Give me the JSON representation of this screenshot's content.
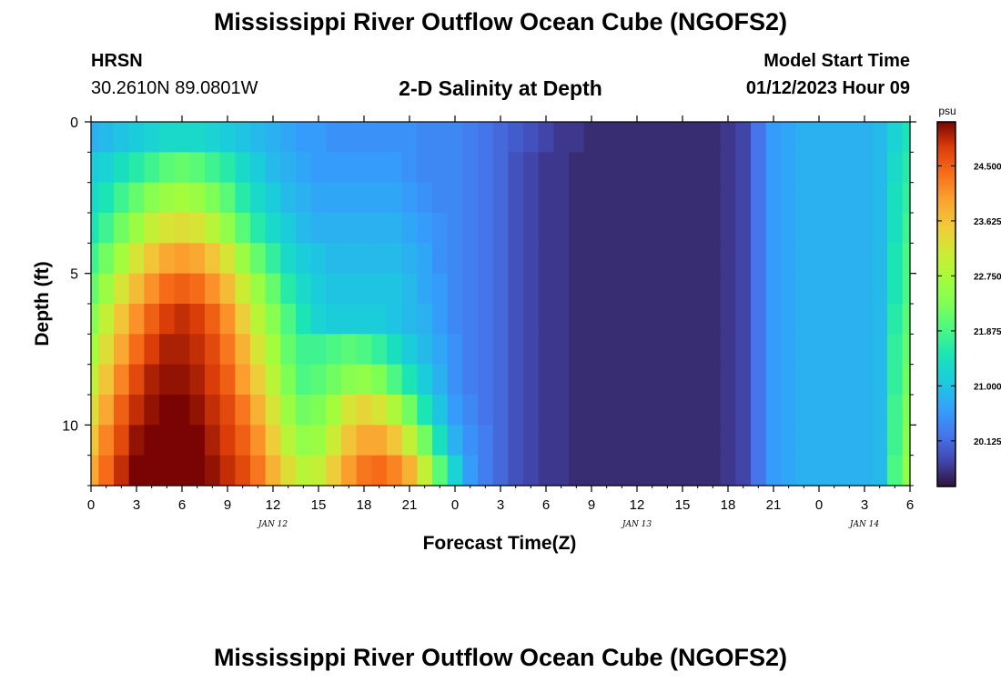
{
  "header": {
    "title": "Mississippi River Outflow Ocean Cube (NGOFS2)",
    "station_code": "HRSN",
    "station_coords": "30.2610N  89.0801W",
    "subtitle": "2-D Salinity at Depth",
    "model_start_label": "Model Start Time",
    "model_start_value": "01/12/2023 Hour 09"
  },
  "footer": {
    "title": "Mississippi River Outflow Ocean Cube (NGOFS2)"
  },
  "chart_data": {
    "type": "heatmap",
    "title": "2-D Salinity at Depth",
    "xlabel": "Forecast Time(Z)",
    "ylabel": "Depth (ft)",
    "x_unit": "hours from Jan 12 00Z",
    "xlim": [
      0,
      54
    ],
    "ylim": [
      0,
      12
    ],
    "y_inverted": true,
    "x_ticks": [
      0,
      3,
      6,
      9,
      12,
      15,
      18,
      21,
      24,
      27,
      30,
      33,
      36,
      39,
      42,
      45,
      48,
      51,
      54
    ],
    "x_tick_labels": [
      "0",
      "3",
      "6",
      "9",
      "12",
      "15",
      "18",
      "21",
      "0",
      "3",
      "6",
      "9",
      "12",
      "15",
      "18",
      "21",
      "0",
      "3",
      "6"
    ],
    "y_ticks": [
      0,
      5,
      10
    ],
    "y_tick_labels": [
      "0",
      "5",
      "10"
    ],
    "date_labels": [
      {
        "text": "JAN 12",
        "x": 12
      },
      {
        "text": "JAN 13",
        "x": 36
      },
      {
        "text": "JAN 14",
        "x": 51
      }
    ],
    "colorbar": {
      "unit": "psu",
      "min": 19.4,
      "max": 25.2,
      "ticks": [
        20.125,
        21.0,
        21.875,
        22.75,
        23.625,
        24.5
      ],
      "tick_labels": [
        "20.125",
        "21.000",
        "21.875",
        "22.750",
        "23.625",
        "24.500"
      ]
    },
    "grid": false,
    "x_times": [
      0,
      1,
      2,
      3,
      4,
      5,
      6,
      7,
      8,
      9,
      10,
      11,
      12,
      13,
      14,
      15,
      16,
      17,
      18,
      19,
      20,
      21,
      22,
      23,
      24,
      25,
      26,
      27,
      28,
      29,
      30,
      31,
      32,
      33,
      34,
      35,
      36,
      37,
      38,
      39,
      40,
      41,
      42,
      43,
      44,
      45,
      46,
      47,
      48,
      49,
      50,
      51,
      52,
      53,
      54
    ],
    "depth_bands": [
      0.5,
      1.5,
      2.5,
      3.5,
      4.5,
      5.5,
      6.5,
      7.5,
      8.5,
      9.5,
      10.5,
      11.5
    ],
    "salinity_psu": [
      [
        20.8,
        20.9,
        21.0,
        21.1,
        21.2,
        21.3,
        21.3,
        21.3,
        21.2,
        21.1,
        21.0,
        20.9,
        20.8,
        20.7,
        20.6,
        20.6,
        20.5,
        20.5,
        20.5,
        20.5,
        20.5,
        20.5,
        20.4,
        20.4,
        20.4,
        20.3,
        20.2,
        20.1,
        20.0,
        19.9,
        19.8,
        19.7,
        19.7,
        19.6,
        19.6,
        19.6,
        19.6,
        19.6,
        19.6,
        19.6,
        19.6,
        19.6,
        19.7,
        19.8,
        20.2,
        20.6,
        20.7,
        20.8,
        20.8,
        20.8,
        20.8,
        20.8,
        20.9,
        21.2,
        21.5
      ],
      [
        21.1,
        21.2,
        21.4,
        21.6,
        21.8,
        22.0,
        22.1,
        22.0,
        21.8,
        21.6,
        21.3,
        21.1,
        20.9,
        20.8,
        20.7,
        20.6,
        20.6,
        20.6,
        20.6,
        20.6,
        20.6,
        20.5,
        20.4,
        20.4,
        20.4,
        20.3,
        20.2,
        20.1,
        19.9,
        19.8,
        19.7,
        19.7,
        19.6,
        19.6,
        19.6,
        19.6,
        19.6,
        19.6,
        19.6,
        19.6,
        19.6,
        19.6,
        19.7,
        19.8,
        20.2,
        20.6,
        20.7,
        20.8,
        20.8,
        20.8,
        20.8,
        20.8,
        20.9,
        21.3,
        21.6
      ],
      [
        21.3,
        21.5,
        21.8,
        22.1,
        22.4,
        22.6,
        22.7,
        22.6,
        22.3,
        22.0,
        21.6,
        21.3,
        21.1,
        20.9,
        20.8,
        20.7,
        20.7,
        20.7,
        20.7,
        20.7,
        20.7,
        20.6,
        20.5,
        20.4,
        20.4,
        20.3,
        20.2,
        20.1,
        19.9,
        19.8,
        19.7,
        19.7,
        19.6,
        19.6,
        19.6,
        19.6,
        19.6,
        19.6,
        19.6,
        19.6,
        19.6,
        19.6,
        19.7,
        19.8,
        20.2,
        20.6,
        20.7,
        20.8,
        20.8,
        20.8,
        20.8,
        20.8,
        20.9,
        21.4,
        21.7
      ],
      [
        21.5,
        21.8,
        22.2,
        22.6,
        23.0,
        23.2,
        23.3,
        23.2,
        22.9,
        22.5,
        22.0,
        21.6,
        21.3,
        21.1,
        20.9,
        20.8,
        20.8,
        20.8,
        20.8,
        20.8,
        20.8,
        20.7,
        20.6,
        20.5,
        20.4,
        20.3,
        20.2,
        20.1,
        19.9,
        19.8,
        19.7,
        19.7,
        19.6,
        19.6,
        19.6,
        19.6,
        19.6,
        19.6,
        19.6,
        19.6,
        19.6,
        19.6,
        19.7,
        19.8,
        20.2,
        20.6,
        20.7,
        20.8,
        20.8,
        20.8,
        20.8,
        20.8,
        20.9,
        21.4,
        21.8
      ],
      [
        21.8,
        22.2,
        22.7,
        23.2,
        23.6,
        23.9,
        24.0,
        23.9,
        23.6,
        23.2,
        22.6,
        22.1,
        21.7,
        21.3,
        21.1,
        21.0,
        20.9,
        20.9,
        20.9,
        20.9,
        20.9,
        20.8,
        20.7,
        20.5,
        20.4,
        20.3,
        20.2,
        20.1,
        19.9,
        19.8,
        19.7,
        19.7,
        19.6,
        19.6,
        19.6,
        19.6,
        19.6,
        19.6,
        19.6,
        19.6,
        19.6,
        19.6,
        19.7,
        19.8,
        20.2,
        20.6,
        20.7,
        20.8,
        20.8,
        20.8,
        20.8,
        20.8,
        20.9,
        21.5,
        21.9
      ],
      [
        22.1,
        22.6,
        23.2,
        23.7,
        24.1,
        24.4,
        24.5,
        24.4,
        24.1,
        23.7,
        23.1,
        22.6,
        22.1,
        21.6,
        21.3,
        21.1,
        21.0,
        21.0,
        21.0,
        21.0,
        21.0,
        20.9,
        20.7,
        20.6,
        20.4,
        20.3,
        20.2,
        20.1,
        19.9,
        19.8,
        19.7,
        19.7,
        19.6,
        19.6,
        19.6,
        19.6,
        19.6,
        19.6,
        19.6,
        19.6,
        19.6,
        19.6,
        19.7,
        19.8,
        20.2,
        20.6,
        20.7,
        20.8,
        20.8,
        20.8,
        20.8,
        20.8,
        20.9,
        21.5,
        21.9
      ],
      [
        22.4,
        23.0,
        23.6,
        24.1,
        24.5,
        24.8,
        24.9,
        24.8,
        24.5,
        24.1,
        23.5,
        22.9,
        22.4,
        21.9,
        21.5,
        21.2,
        21.1,
        21.1,
        21.1,
        21.1,
        21.0,
        20.9,
        20.8,
        20.6,
        20.4,
        20.3,
        20.2,
        20.1,
        19.9,
        19.8,
        19.7,
        19.7,
        19.6,
        19.6,
        19.6,
        19.6,
        19.6,
        19.6,
        19.6,
        19.6,
        19.6,
        19.6,
        19.7,
        19.8,
        20.2,
        20.6,
        20.7,
        20.8,
        20.8,
        20.8,
        20.8,
        20.8,
        20.9,
        21.6,
        22.0
      ],
      [
        22.7,
        23.3,
        23.9,
        24.4,
        24.8,
        25.0,
        25.0,
        24.9,
        24.7,
        24.3,
        23.8,
        23.2,
        22.7,
        22.1,
        21.8,
        21.8,
        21.9,
        22.0,
        21.9,
        21.7,
        21.4,
        21.1,
        20.9,
        20.7,
        20.5,
        20.3,
        20.2,
        20.1,
        19.9,
        19.8,
        19.7,
        19.7,
        19.6,
        19.6,
        19.6,
        19.6,
        19.6,
        19.6,
        19.6,
        19.6,
        19.6,
        19.6,
        19.7,
        19.8,
        20.2,
        20.6,
        20.7,
        20.8,
        20.8,
        20.8,
        20.8,
        20.8,
        20.9,
        21.7,
        22.1
      ],
      [
        23.0,
        23.6,
        24.2,
        24.7,
        25.0,
        25.1,
        25.1,
        25.0,
        24.8,
        24.5,
        24.0,
        23.5,
        22.9,
        22.3,
        21.9,
        22.0,
        22.2,
        22.4,
        22.5,
        22.3,
        21.9,
        21.5,
        21.1,
        20.8,
        20.5,
        20.3,
        20.2,
        20.1,
        19.9,
        19.8,
        19.7,
        19.7,
        19.6,
        19.6,
        19.6,
        19.6,
        19.6,
        19.6,
        19.6,
        19.6,
        19.6,
        19.6,
        19.7,
        19.8,
        20.2,
        20.6,
        20.7,
        20.8,
        20.8,
        20.8,
        20.8,
        20.8,
        20.9,
        21.7,
        22.2
      ],
      [
        23.3,
        23.9,
        24.5,
        24.9,
        25.1,
        25.2,
        25.2,
        25.1,
        24.9,
        24.7,
        24.3,
        23.8,
        23.2,
        22.6,
        22.2,
        22.3,
        22.7,
        23.2,
        23.4,
        23.2,
        22.8,
        22.2,
        21.5,
        21.0,
        20.6,
        20.4,
        20.2,
        20.1,
        19.9,
        19.8,
        19.7,
        19.7,
        19.6,
        19.6,
        19.6,
        19.6,
        19.6,
        19.6,
        19.6,
        19.6,
        19.6,
        19.6,
        19.7,
        19.8,
        20.2,
        20.6,
        20.7,
        20.8,
        20.8,
        20.8,
        20.8,
        20.8,
        20.9,
        21.8,
        22.3
      ],
      [
        23.6,
        24.2,
        24.7,
        25.1,
        25.2,
        25.3,
        25.3,
        25.2,
        25.0,
        24.8,
        24.5,
        24.1,
        23.5,
        22.9,
        22.5,
        22.6,
        23.1,
        23.6,
        23.9,
        23.9,
        23.6,
        23.0,
        22.2,
        21.4,
        20.8,
        20.5,
        20.3,
        20.1,
        19.9,
        19.8,
        19.7,
        19.7,
        19.6,
        19.6,
        19.6,
        19.6,
        19.6,
        19.6,
        19.6,
        19.6,
        19.6,
        19.6,
        19.7,
        19.8,
        20.2,
        20.6,
        20.7,
        20.8,
        20.8,
        20.8,
        20.8,
        20.8,
        20.9,
        21.8,
        22.4
      ],
      [
        23.9,
        24.4,
        24.9,
        25.2,
        25.3,
        25.4,
        25.4,
        25.3,
        25.1,
        24.9,
        24.7,
        24.3,
        23.8,
        23.3,
        22.9,
        23.0,
        23.5,
        24.0,
        24.3,
        24.4,
        24.2,
        23.8,
        23.0,
        22.0,
        21.2,
        20.6,
        20.3,
        20.1,
        19.9,
        19.8,
        19.7,
        19.7,
        19.6,
        19.6,
        19.6,
        19.6,
        19.6,
        19.6,
        19.6,
        19.6,
        19.6,
        19.6,
        19.7,
        19.8,
        20.2,
        20.6,
        20.7,
        20.8,
        20.8,
        20.8,
        20.8,
        20.8,
        20.9,
        21.9,
        22.5
      ]
    ]
  }
}
